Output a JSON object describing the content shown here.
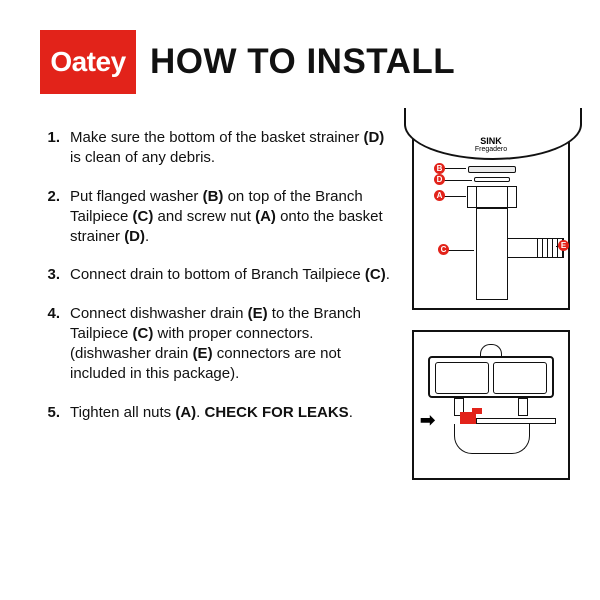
{
  "brand": {
    "name": "Oatey",
    "bg": "#e2231a",
    "fg": "#ffffff"
  },
  "title": "HOW TO INSTALL",
  "steps": [
    {
      "n": "1.",
      "html": "Make sure the bottom of the basket strainer <b>(D)</b> is clean of any debris."
    },
    {
      "n": "2.",
      "html": "Put flanged washer <b>(B)</b> on top of the Branch Tailpiece <b>(C)</b> and screw nut <b>(A)</b> onto the basket strainer <b>(D)</b>."
    },
    {
      "n": "3.",
      "html": "Connect drain to bottom of Branch Tailpiece <b>(C)</b>."
    },
    {
      "n": "4.",
      "html": "Connect dishwasher drain <b>(E)</b> to the Branch Tailpiece <b>(C)</b> with proper connectors. (dishwasher drain <b>(E)</b> connectors are not included in this package)."
    },
    {
      "n": "5.",
      "html": "Tighten all nuts <b>(A)</b>. <b>CHECK FOR LEAKS</b>."
    }
  ],
  "figure1": {
    "sink_label": "SINK",
    "sink_sublabel": "Fregadero",
    "callouts": [
      "A",
      "B",
      "C",
      "D",
      "E"
    ],
    "accent": "#e2231a"
  },
  "figure2": {
    "arrow_glyph": "➡",
    "accent": "#e2231a"
  },
  "colors": {
    "text": "#111111",
    "bg": "#ffffff",
    "accent": "#e2231a"
  }
}
